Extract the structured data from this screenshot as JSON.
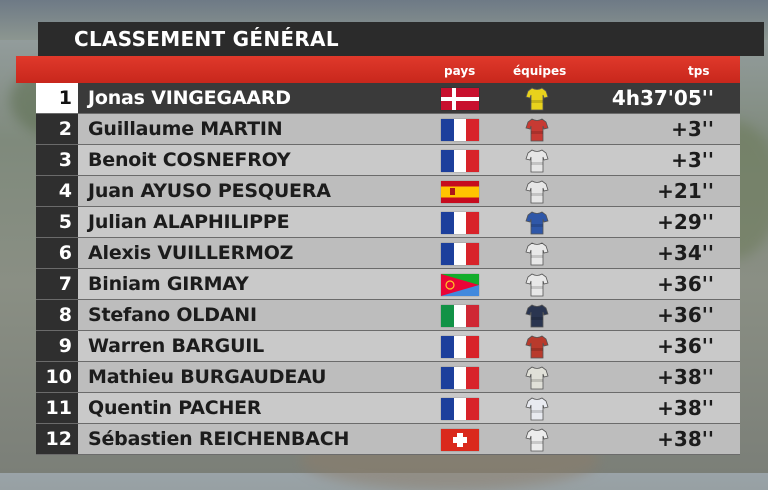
{
  "title": "CLASSEMENT GÉNÉRAL",
  "columns": {
    "pays": "pays",
    "equipes": "équipes",
    "tps": "tps"
  },
  "rows": [
    {
      "rank": "1",
      "name": "Jonas VINGEGAARD",
      "flag": "denmark",
      "jersey": "#e8d21c",
      "time": "4h37'05''"
    },
    {
      "rank": "2",
      "name": "Guillaume MARTIN",
      "flag": "france",
      "jersey": "#c73a33",
      "time": "+3''"
    },
    {
      "rank": "3",
      "name": "Benoit COSNEFROY",
      "flag": "france",
      "jersey": "#e6e6e6",
      "time": "+3''"
    },
    {
      "rank": "4",
      "name": "Juan AYUSO PESQUERA",
      "flag": "spain",
      "jersey": "#e6e6e6",
      "time": "+21''"
    },
    {
      "rank": "5",
      "name": "Julian ALAPHILIPPE",
      "flag": "france",
      "jersey": "#2f57a8",
      "time": "+29''"
    },
    {
      "rank": "6",
      "name": "Alexis VUILLERMOZ",
      "flag": "france",
      "jersey": "#e8e8e8",
      "time": "+34''"
    },
    {
      "rank": "7",
      "name": "Biniam GIRMAY",
      "flag": "eritrea",
      "jersey": "#e8e8e8",
      "time": "+36''"
    },
    {
      "rank": "8",
      "name": "Stefano OLDANI",
      "flag": "italy",
      "jersey": "#2a3550",
      "time": "+36''"
    },
    {
      "rank": "9",
      "name": "Warren BARGUIL",
      "flag": "france",
      "jersey": "#b83a2c",
      "time": "+36''"
    },
    {
      "rank": "10",
      "name": "Mathieu BURGAUDEAU",
      "flag": "france",
      "jersey": "#e0e0d8",
      "time": "+38''"
    },
    {
      "rank": "11",
      "name": "Quentin PACHER",
      "flag": "france",
      "jersey": "#e8eaf0",
      "time": "+38''"
    },
    {
      "rank": "12",
      "name": "Sébastien REICHENBACH",
      "flag": "switzerland",
      "jersey": "#ececec",
      "time": "+38''"
    }
  ]
}
